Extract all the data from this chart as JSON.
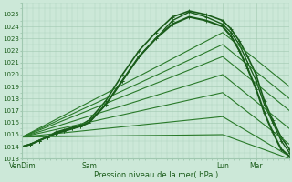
{
  "bg_color": "#cce8d8",
  "grid_color": "#a0c8b0",
  "line_color_dark": "#1a5c1a",
  "line_color_mid": "#2a7a2a",
  "xlabel": "Pression niveau de la mer( hPa )",
  "ylim": [
    1013,
    1026
  ],
  "yticks": [
    1013,
    1014,
    1015,
    1016,
    1017,
    1018,
    1019,
    1020,
    1021,
    1022,
    1023,
    1024,
    1025
  ],
  "xtick_labels": [
    "VenDim",
    "Sam",
    "Lun",
    "Mar"
  ],
  "xtick_positions": [
    0,
    48,
    144,
    168
  ],
  "total_points": 192,
  "series": [
    {
      "x": [
        0,
        6,
        12,
        18,
        24,
        30,
        36,
        42,
        48,
        60,
        72,
        84,
        96,
        108,
        120,
        132,
        144,
        150,
        156,
        162,
        168,
        174,
        180,
        186,
        192
      ],
      "y": [
        1014.0,
        1014.2,
        1014.5,
        1014.8,
        1015.1,
        1015.3,
        1015.5,
        1015.7,
        1016.0,
        1017.5,
        1019.5,
        1021.5,
        1023.0,
        1024.5,
        1025.2,
        1024.8,
        1024.2,
        1023.5,
        1022.5,
        1021.0,
        1019.5,
        1017.5,
        1016.0,
        1014.5,
        1013.5
      ],
      "linestyle": "-",
      "linewidth": 1.0,
      "color": "#1a5c1a",
      "marker": "+",
      "markersize": 2.5
    },
    {
      "x": [
        0,
        6,
        12,
        18,
        24,
        30,
        36,
        42,
        48,
        60,
        72,
        84,
        96,
        108,
        120,
        132,
        144,
        150,
        156,
        162,
        168,
        174,
        180,
        186,
        192
      ],
      "y": [
        1014.0,
        1014.2,
        1014.5,
        1014.8,
        1015.2,
        1015.4,
        1015.6,
        1015.8,
        1016.2,
        1017.8,
        1020.0,
        1022.0,
        1023.5,
        1024.8,
        1025.3,
        1025.0,
        1024.5,
        1023.8,
        1022.8,
        1021.5,
        1020.0,
        1017.8,
        1016.2,
        1014.8,
        1013.8
      ],
      "linestyle": "-",
      "linewidth": 1.2,
      "color": "#1a5c1a",
      "marker": "+",
      "markersize": 2.5
    },
    {
      "x": [
        0,
        144,
        192
      ],
      "y": [
        1014.8,
        1023.5,
        1019.0
      ],
      "linestyle": "-",
      "linewidth": 0.8,
      "color": "#2a7a2a",
      "marker": null,
      "markersize": 0
    },
    {
      "x": [
        0,
        144,
        192
      ],
      "y": [
        1014.8,
        1022.5,
        1018.0
      ],
      "linestyle": "-",
      "linewidth": 0.8,
      "color": "#2a7a2a",
      "marker": null,
      "markersize": 0
    },
    {
      "x": [
        0,
        144,
        192
      ],
      "y": [
        1014.8,
        1021.5,
        1017.0
      ],
      "linestyle": "-",
      "linewidth": 0.8,
      "color": "#2a7a2a",
      "marker": null,
      "markersize": 0
    },
    {
      "x": [
        0,
        144,
        192
      ],
      "y": [
        1014.8,
        1020.0,
        1015.5
      ],
      "linestyle": "-",
      "linewidth": 0.8,
      "color": "#2a7a2a",
      "marker": null,
      "markersize": 0
    },
    {
      "x": [
        0,
        144,
        192
      ],
      "y": [
        1014.8,
        1018.5,
        1014.2
      ],
      "linestyle": "-",
      "linewidth": 0.8,
      "color": "#2a7a2a",
      "marker": null,
      "markersize": 0
    },
    {
      "x": [
        0,
        144,
        192
      ],
      "y": [
        1014.8,
        1016.5,
        1013.2
      ],
      "linestyle": "-",
      "linewidth": 0.8,
      "color": "#2a7a2a",
      "marker": null,
      "markersize": 0
    },
    {
      "x": [
        0,
        144,
        192
      ],
      "y": [
        1014.8,
        1015.0,
        1013.0
      ],
      "linestyle": "-",
      "linewidth": 0.8,
      "color": "#2a7a2a",
      "marker": null,
      "markersize": 0
    },
    {
      "x": [
        0,
        6,
        12,
        18,
        24,
        30,
        36,
        42,
        48,
        60,
        72,
        84,
        96,
        108,
        120,
        132,
        144,
        150,
        156,
        162,
        168,
        174,
        180,
        186,
        192
      ],
      "y": [
        1014.0,
        1014.2,
        1014.5,
        1014.8,
        1015.1,
        1015.3,
        1015.5,
        1015.7,
        1016.0,
        1017.5,
        1019.5,
        1021.5,
        1023.0,
        1024.2,
        1024.8,
        1024.5,
        1024.0,
        1023.2,
        1022.0,
        1020.5,
        1018.8,
        1016.8,
        1015.2,
        1013.8,
        1013.2
      ],
      "linestyle": "-",
      "linewidth": 1.5,
      "color": "#1a5c1a",
      "marker": "+",
      "markersize": 3.0
    }
  ]
}
